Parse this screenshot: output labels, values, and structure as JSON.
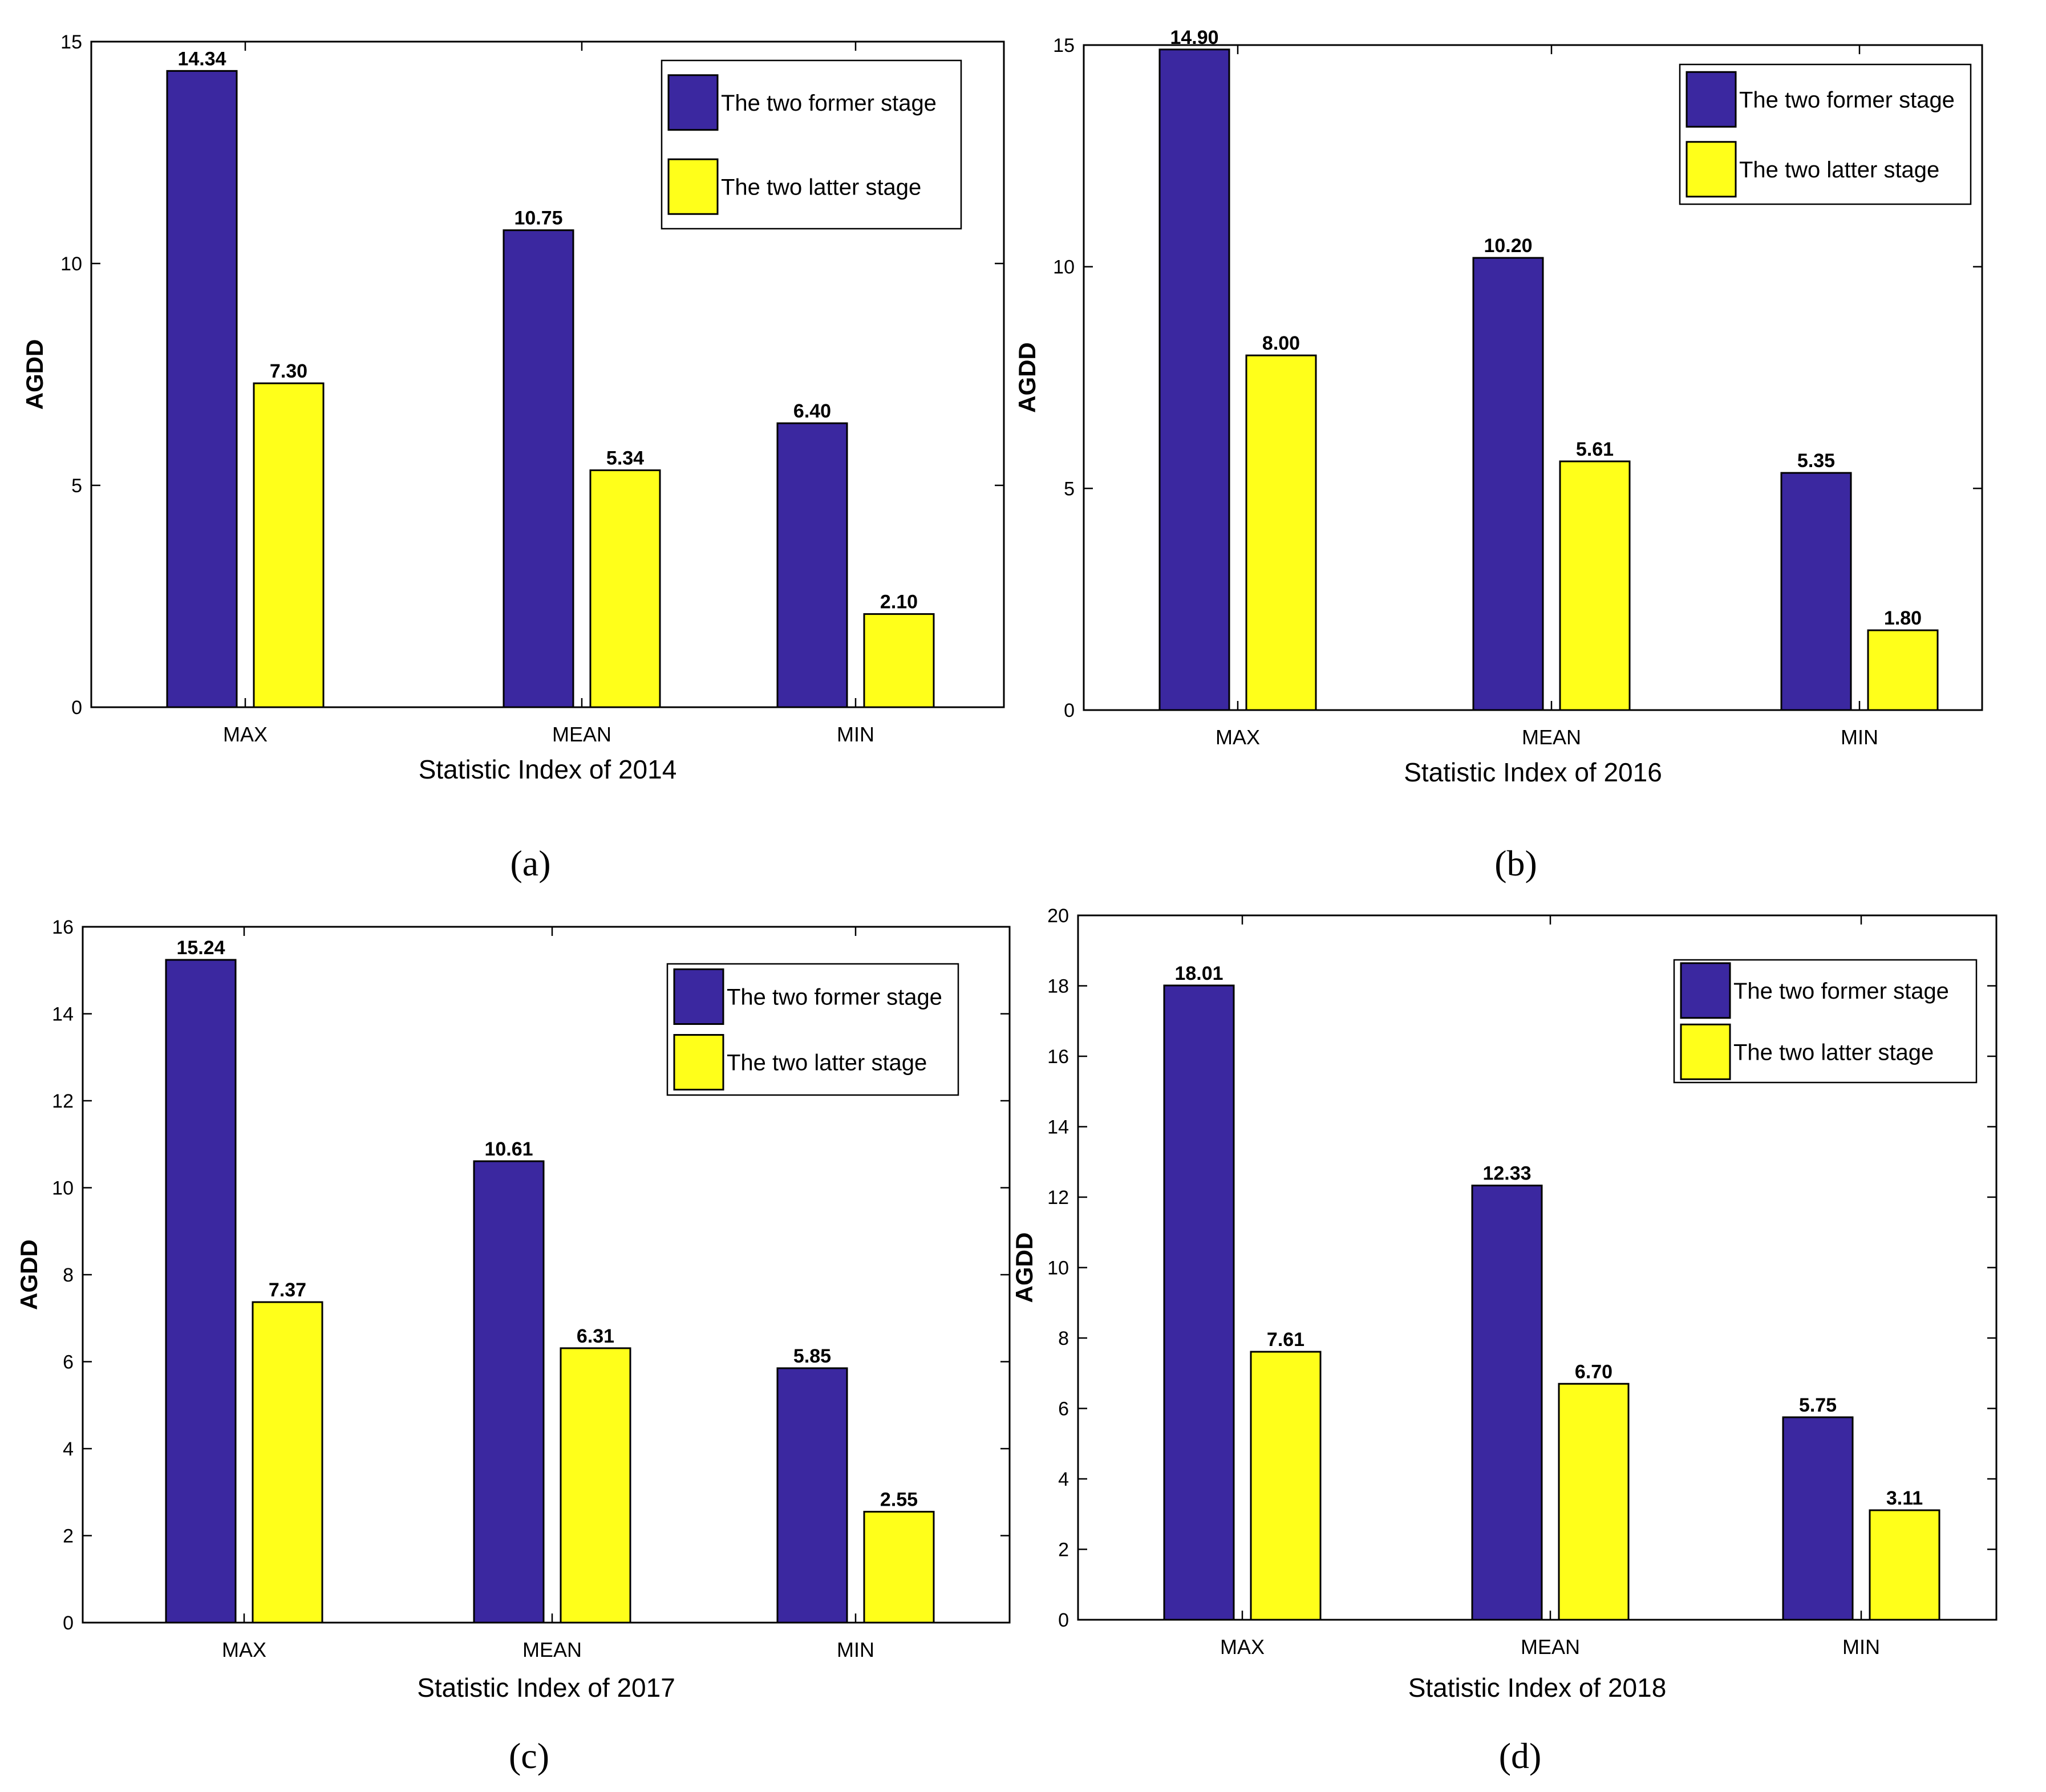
{
  "colors": {
    "former": "#3b28a0",
    "latter": "#ffff1a"
  },
  "chart_data": [
    {
      "type": "bar",
      "panel_label": "(a)",
      "categories": [
        "MAX",
        "MEAN",
        "MIN"
      ],
      "xlabel": "Statistic Index of 2014",
      "ylabel": "AGDD",
      "ylim": [
        0,
        15
      ],
      "yticks": [
        0,
        5,
        10,
        15
      ],
      "legend": "top-right",
      "series": [
        {
          "name": "The two former stage",
          "values": [
            14.34,
            10.75,
            6.4
          ],
          "labels": [
            "14.34",
            "10.75",
            "6.40"
          ]
        },
        {
          "name": "The two latter stage",
          "values": [
            7.3,
            5.34,
            2.1
          ],
          "labels": [
            "7.30",
            "5.34",
            "2.10"
          ]
        }
      ]
    },
    {
      "type": "bar",
      "panel_label": "(b)",
      "categories": [
        "MAX",
        "MEAN",
        "MIN"
      ],
      "xlabel": "Statistic Index of 2016",
      "ylabel": "AGDD",
      "ylim": [
        0,
        15
      ],
      "yticks": [
        0,
        5,
        10,
        15
      ],
      "legend": "top-right",
      "series": [
        {
          "name": "The two former stage",
          "values": [
            14.9,
            10.2,
            5.35
          ],
          "labels": [
            "14.90",
            "10.20",
            "5.35"
          ]
        },
        {
          "name": "The two latter stage",
          "values": [
            8.0,
            5.61,
            1.8
          ],
          "labels": [
            "8.00",
            "5.61",
            "1.80"
          ]
        }
      ]
    },
    {
      "type": "bar",
      "panel_label": "(c)",
      "categories": [
        "MAX",
        "MEAN",
        "MIN"
      ],
      "xlabel": "Statistic Index of 2017",
      "ylabel": "AGDD",
      "ylim": [
        0,
        16
      ],
      "yticks": [
        0,
        2,
        4,
        6,
        8,
        10,
        12,
        14,
        16
      ],
      "legend": "top-right",
      "series": [
        {
          "name": "The two former stage",
          "values": [
            15.24,
            10.61,
            5.85
          ],
          "labels": [
            "15.24",
            "10.61",
            "5.85"
          ]
        },
        {
          "name": "The two latter stage",
          "values": [
            7.37,
            6.31,
            2.55
          ],
          "labels": [
            "7.37",
            "6.31",
            "2.55"
          ]
        }
      ]
    },
    {
      "type": "bar",
      "panel_label": "(d)",
      "categories": [
        "MAX",
        "MEAN",
        "MIN"
      ],
      "xlabel": "Statistic Index of 2018",
      "ylabel": "AGDD",
      "ylim": [
        0,
        20
      ],
      "yticks": [
        0,
        2,
        4,
        6,
        8,
        10,
        12,
        14,
        16,
        18,
        20
      ],
      "legend": "top-right",
      "series": [
        {
          "name": "The two former stage",
          "values": [
            18.01,
            12.33,
            5.75
          ],
          "labels": [
            "18.01",
            "12.33",
            "5.75"
          ]
        },
        {
          "name": "The two latter stage",
          "values": [
            7.61,
            6.7,
            3.11
          ],
          "labels": [
            "7.61",
            "6.70",
            "3.11"
          ]
        }
      ]
    }
  ]
}
